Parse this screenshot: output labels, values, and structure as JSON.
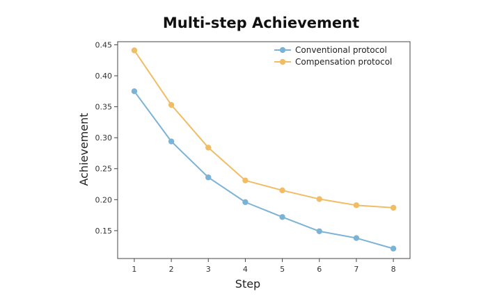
{
  "chart_data": {
    "type": "line",
    "title": "Multi-step Achievement",
    "xlabel": "Step",
    "ylabel": "Achievement",
    "x": [
      1,
      2,
      3,
      4,
      5,
      6,
      7,
      8
    ],
    "xticks": [
      "1",
      "2",
      "3",
      "4",
      "5",
      "6",
      "7",
      "8"
    ],
    "xlim": [
      0.55,
      8.45
    ],
    "ylim": [
      0.105,
      0.455
    ],
    "yticks": [
      0.15,
      0.2,
      0.25,
      0.3,
      0.35,
      0.4,
      0.45
    ],
    "ytick_labels": [
      "0.15",
      "0.20",
      "0.25",
      "0.30",
      "0.35",
      "0.40",
      "0.45"
    ],
    "grid": false,
    "legend_position": "top-right",
    "series": [
      {
        "name": "Conventional protocol",
        "color": "#7bb3d6",
        "values": [
          0.375,
          0.294,
          0.236,
          0.196,
          0.172,
          0.149,
          0.138,
          0.121
        ]
      },
      {
        "name": "Compensation protocol",
        "color": "#f0bc64",
        "values": [
          0.441,
          0.353,
          0.284,
          0.231,
          0.215,
          0.201,
          0.191,
          0.187
        ]
      }
    ]
  }
}
